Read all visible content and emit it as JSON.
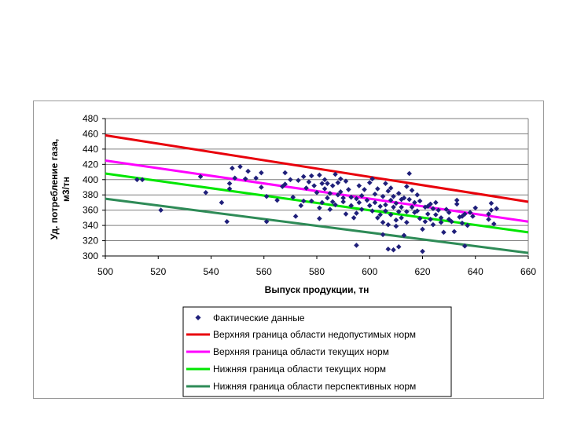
{
  "chart_data": {
    "type": "scatter",
    "title": "",
    "xlabel": "Выпуск продукции, тн",
    "ylabel": [
      "Уд. потребление газа,",
      "м3/тн"
    ],
    "xlim": [
      500,
      660
    ],
    "ylim": [
      300,
      480
    ],
    "xticks": [
      500,
      520,
      540,
      560,
      580,
      600,
      620,
      640,
      660
    ],
    "yticks": [
      300,
      320,
      340,
      360,
      380,
      400,
      420,
      440,
      460,
      480
    ],
    "grid": true,
    "legend_position": "bottom",
    "scatter": {
      "name": "Фактические данные",
      "color": "#1f1f7a",
      "points": [
        [
          512,
          400
        ],
        [
          514,
          400
        ],
        [
          521,
          360
        ],
        [
          536,
          404
        ],
        [
          538,
          383
        ],
        [
          544,
          370
        ],
        [
          546,
          345
        ],
        [
          547,
          388
        ],
        [
          547,
          395
        ],
        [
          548,
          415
        ],
        [
          549,
          402
        ],
        [
          551,
          417
        ],
        [
          553,
          401
        ],
        [
          554,
          411
        ],
        [
          557,
          402
        ],
        [
          559,
          409
        ],
        [
          559,
          390
        ],
        [
          561,
          345
        ],
        [
          561,
          378
        ],
        [
          565,
          373
        ],
        [
          567,
          391
        ],
        [
          568,
          409
        ],
        [
          568,
          394
        ],
        [
          570,
          400
        ],
        [
          571,
          377
        ],
        [
          572,
          352
        ],
        [
          573,
          399
        ],
        [
          574,
          366
        ],
        [
          575,
          372
        ],
        [
          575,
          404
        ],
        [
          576,
          389
        ],
        [
          577,
          397
        ],
        [
          578,
          405
        ],
        [
          578,
          372
        ],
        [
          579,
          392
        ],
        [
          580,
          383
        ],
        [
          581,
          349
        ],
        [
          581,
          406
        ],
        [
          581,
          363
        ],
        [
          582,
          370
        ],
        [
          582,
          395
        ],
        [
          583,
          400
        ],
        [
          583,
          388
        ],
        [
          584,
          395
        ],
        [
          584,
          376
        ],
        [
          585,
          382
        ],
        [
          585,
          361
        ],
        [
          586,
          392
        ],
        [
          586,
          371
        ],
        [
          587,
          367
        ],
        [
          587,
          407
        ],
        [
          588,
          396
        ],
        [
          588,
          380
        ],
        [
          589,
          401
        ],
        [
          589,
          384
        ],
        [
          590,
          376
        ],
        [
          590,
          371
        ],
        [
          591,
          398
        ],
        [
          591,
          355
        ],
        [
          592,
          387
        ],
        [
          593,
          377
        ],
        [
          593,
          366
        ],
        [
          594,
          350
        ],
        [
          595,
          356
        ],
        [
          595,
          375
        ],
        [
          595,
          314
        ],
        [
          596,
          370
        ],
        [
          596,
          392
        ],
        [
          597,
          379
        ],
        [
          597,
          361
        ],
        [
          598,
          387
        ],
        [
          599,
          373
        ],
        [
          600,
          396
        ],
        [
          600,
          366
        ],
        [
          601,
          359
        ],
        [
          601,
          401
        ],
        [
          602,
          381
        ],
        [
          602,
          370
        ],
        [
          603,
          350
        ],
        [
          603,
          388
        ],
        [
          604,
          365
        ],
        [
          604,
          354
        ],
        [
          605,
          378
        ],
        [
          605,
          344
        ],
        [
          605,
          328
        ],
        [
          606,
          395
        ],
        [
          606,
          367
        ],
        [
          606,
          359
        ],
        [
          607,
          385
        ],
        [
          607,
          309
        ],
        [
          607,
          341
        ],
        [
          608,
          373
        ],
        [
          608,
          389
        ],
        [
          608,
          354
        ],
        [
          609,
          378
        ],
        [
          609,
          364
        ],
        [
          609,
          308
        ],
        [
          610,
          369
        ],
        [
          610,
          347
        ],
        [
          610,
          339
        ],
        [
          611,
          382
        ],
        [
          611,
          358
        ],
        [
          611,
          312
        ],
        [
          612,
          374
        ],
        [
          612,
          364
        ],
        [
          612,
          350
        ],
        [
          613,
          376
        ],
        [
          613,
          327
        ],
        [
          614,
          391
        ],
        [
          614,
          358
        ],
        [
          614,
          344
        ],
        [
          615,
          408
        ],
        [
          615,
          374
        ],
        [
          616,
          364
        ],
        [
          616,
          386
        ],
        [
          617,
          370
        ],
        [
          617,
          357
        ],
        [
          618,
          380
        ],
        [
          618,
          359
        ],
        [
          619,
          349
        ],
        [
          619,
          372
        ],
        [
          620,
          335
        ],
        [
          620,
          306
        ],
        [
          621,
          364
        ],
        [
          621,
          345
        ],
        [
          622,
          365
        ],
        [
          622,
          355
        ],
        [
          623,
          368
        ],
        [
          623,
          348
        ],
        [
          624,
          362
        ],
        [
          624,
          341
        ],
        [
          625,
          370
        ],
        [
          625,
          354
        ],
        [
          626,
          360
        ],
        [
          627,
          350
        ],
        [
          627,
          344
        ],
        [
          628,
          331
        ],
        [
          629,
          361
        ],
        [
          630,
          357
        ],
        [
          630,
          348
        ],
        [
          631,
          345
        ],
        [
          632,
          332
        ],
        [
          633,
          368
        ],
        [
          633,
          373
        ],
        [
          634,
          351
        ],
        [
          635,
          343
        ],
        [
          635,
          352
        ],
        [
          636,
          355
        ],
        [
          636,
          313
        ],
        [
          637,
          340
        ],
        [
          638,
          357
        ],
        [
          639,
          352
        ],
        [
          640,
          363
        ],
        [
          645,
          348
        ],
        [
          645,
          355
        ],
        [
          646,
          369
        ],
        [
          646,
          360
        ],
        [
          647,
          342
        ],
        [
          648,
          362
        ]
      ]
    },
    "lines": [
      {
        "name": "Верхняя граница области недопустимых норм",
        "color": "#e8000b",
        "x": [
          500,
          660
        ],
        "y": [
          458,
          371
        ]
      },
      {
        "name": "Верхняя граница области текущих норм",
        "color": "#ff00ff",
        "x": [
          500,
          660
        ],
        "y": [
          425,
          345
        ]
      },
      {
        "name": "Нижняя граница области текущих норм",
        "color": "#00e600",
        "x": [
          500,
          660
        ],
        "y": [
          408,
          331
        ]
      },
      {
        "name": "Нижняя граница области перспективных норм",
        "color": "#2e8b57",
        "x": [
          500,
          660
        ],
        "y": [
          375,
          304
        ]
      }
    ]
  }
}
